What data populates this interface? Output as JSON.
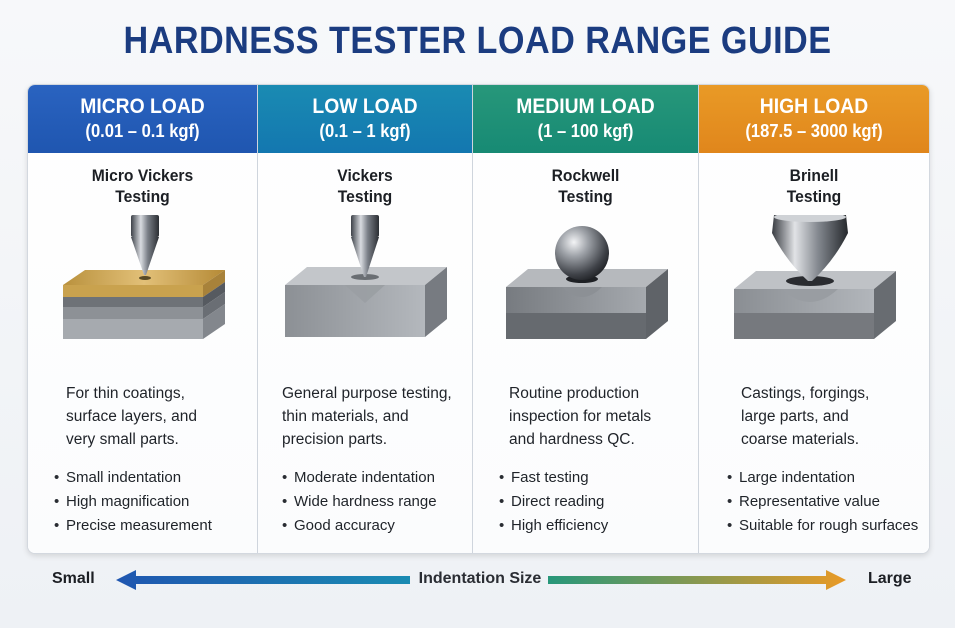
{
  "title": "HARDNESS TESTER LOAD RANGE GUIDE",
  "cards": [
    {
      "name": "MICRO LOAD",
      "range": "(0.01 – 0.1 kgf)",
      "color": "#1f56b0",
      "color2": "#2a63c0",
      "method": [
        "Micro Vickers",
        "Testing"
      ],
      "indenter": "cone-indenter-icon",
      "description": [
        "For thin coatings,",
        "surface layers, and",
        "very small parts."
      ],
      "bullets": [
        "Small indentation",
        "High magnification",
        "Precise measurement"
      ]
    },
    {
      "name": "LOW LOAD",
      "range": "(0.1 – 1 kgf)",
      "color": "#1377b0",
      "color2": "#1a8bb2",
      "method": [
        "Vickers",
        "Testing"
      ],
      "indenter": "cone-indenter-icon",
      "description": [
        "General purpose testing,",
        "thin materials, and",
        "precision parts."
      ],
      "bullets": [
        "Moderate indentation",
        "Wide hardness range",
        "Good accuracy"
      ]
    },
    {
      "name": "MEDIUM LOAD",
      "range": "(1 – 100 kgf)",
      "color": "#178a74",
      "color2": "#27977a",
      "method": [
        "Rockwell",
        "Testing"
      ],
      "indenter": "ball-indenter-icon",
      "description": [
        "Routine production",
        "inspection for metals",
        "and hardness QC."
      ],
      "bullets": [
        "Fast testing",
        "Direct reading",
        "High efficiency"
      ]
    },
    {
      "name": "HIGH LOAD",
      "range": "(187.5 – 3000 kgf)",
      "color": "#e0861c",
      "color2": "#e99a26",
      "method": [
        "Brinell",
        "Testing"
      ],
      "indenter": "large-indenter-icon",
      "description": [
        "Castings, forgings,",
        "large parts, and",
        "coarse materials."
      ],
      "bullets": [
        "Large indentation",
        "Representative value",
        "Suitable for rough surfaces"
      ]
    }
  ],
  "scale": {
    "left_label": "Small",
    "center_label": "Indentation Size",
    "right_label": "Large",
    "gradient_colors": [
      "#1f56b0",
      "#1a8bb2",
      "#27977a",
      "#e99a26"
    ]
  }
}
